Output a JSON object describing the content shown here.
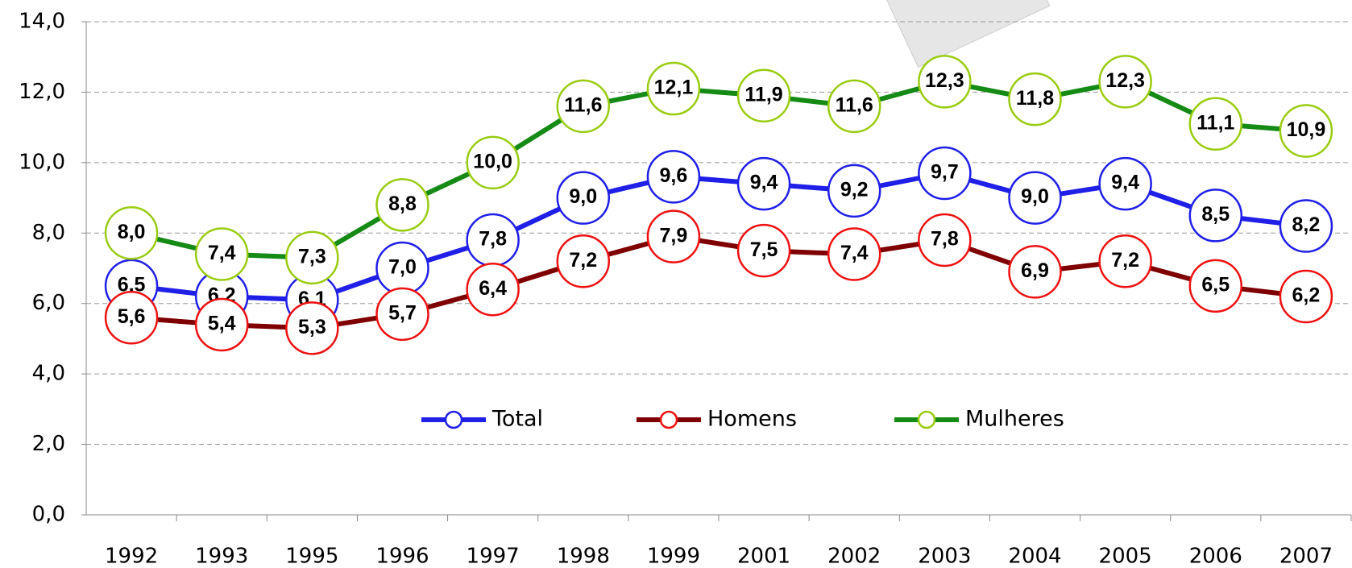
{
  "chart_data": {
    "type": "line",
    "categories": [
      "1992",
      "1993",
      "1995",
      "1996",
      "1997",
      "1998",
      "1999",
      "2001",
      "2002",
      "2003",
      "2004",
      "2005",
      "2006",
      "2007"
    ],
    "ylim": [
      0,
      14
    ],
    "yticks": [
      {
        "value": 0,
        "label": "0,0"
      },
      {
        "value": 2,
        "label": "2,0"
      },
      {
        "value": 4,
        "label": "4,0"
      },
      {
        "value": 6,
        "label": "6,0"
      },
      {
        "value": 8,
        "label": "8,0"
      },
      {
        "value": 10,
        "label": "10,0"
      },
      {
        "value": 12,
        "label": "12,0"
      },
      {
        "value": 14,
        "label": "14,0"
      }
    ],
    "grid": true,
    "series": [
      {
        "name": "Total",
        "color": "#1f1fe8",
        "marker_color": "#1f1fe8",
        "values": [
          6.5,
          6.2,
          6.1,
          7.0,
          7.8,
          9.0,
          9.6,
          9.4,
          9.2,
          9.7,
          9.0,
          9.4,
          8.5,
          8.2
        ],
        "value_labels": [
          "6,5",
          "6,2",
          "6,1",
          "7,0",
          "7,8",
          "9,0",
          "9,6",
          "9,4",
          "9,2",
          "9,7",
          "9,0",
          "9,4",
          "8,5",
          "8,2"
        ]
      },
      {
        "name": "Homens",
        "color": "#7f0000",
        "marker_color": "#ee1111",
        "values": [
          5.6,
          5.4,
          5.3,
          5.7,
          6.4,
          7.2,
          7.9,
          7.5,
          7.4,
          7.8,
          6.9,
          7.2,
          6.5,
          6.2
        ],
        "value_labels": [
          "5,6",
          "5,4",
          "5,3",
          "5,7",
          "6,4",
          "7,2",
          "7,9",
          "7,5",
          "7,4",
          "7,8",
          "6,9",
          "7,2",
          "6,5",
          "6,2"
        ]
      },
      {
        "name": "Mulheres",
        "color": "#158a15",
        "marker_color": "#99cc11",
        "values": [
          8.0,
          7.4,
          7.3,
          8.8,
          10.0,
          11.6,
          12.1,
          11.9,
          11.6,
          12.3,
          11.8,
          12.3,
          11.1,
          10.9
        ],
        "value_labels": [
          "8,0",
          "7,4",
          "7,3",
          "8,8",
          "10,0",
          "11,6",
          "12,1",
          "11,9",
          "11,6",
          "12,3",
          "11,8",
          "12,3",
          "11,1",
          "10,9"
        ]
      }
    ]
  }
}
